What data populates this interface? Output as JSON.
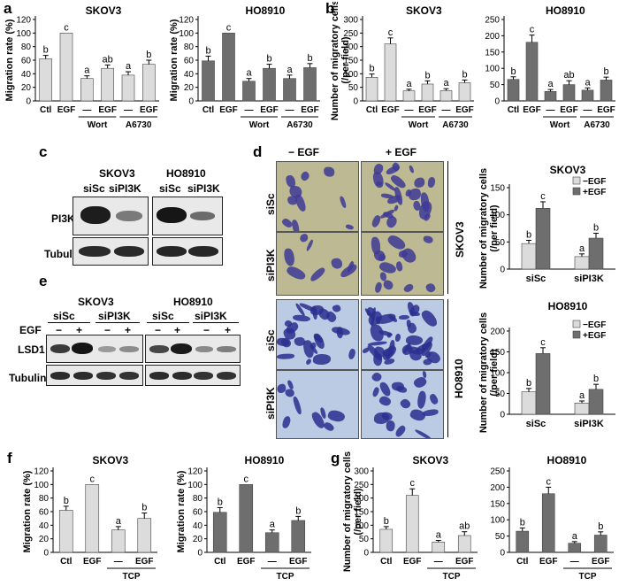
{
  "panels": {
    "a": "a",
    "b": "b",
    "c": "c",
    "d": "d",
    "e": "e",
    "f": "f",
    "g": "g"
  },
  "colors": {
    "light_bar": "#dcdcdc",
    "dark_bar": "#6e6e6e",
    "micro_sk": "#bdb993",
    "micro_ho": "#bccbe4",
    "stain": "#3e3a95"
  },
  "chart_data": [
    {
      "id": "a1",
      "type": "bar",
      "title": "SKOV3",
      "ylabel": "Migration rate (%)",
      "ylim": [
        0,
        120
      ],
      "yticks": [
        0,
        20,
        40,
        60,
        80,
        100,
        120
      ],
      "categories": [
        "Ctl",
        "EGF",
        "—",
        "EGF",
        "—",
        "EGF"
      ],
      "values": [
        62,
        100,
        33,
        48,
        38,
        54
      ],
      "errors": [
        5,
        0,
        4,
        5,
        5,
        6
      ],
      "letters": [
        "b",
        "c",
        "a",
        "ab",
        "a",
        "b"
      ],
      "groups": [
        {
          "label": "Wort",
          "from": 2,
          "to": 3
        },
        {
          "label": "A6730",
          "from": 4,
          "to": 5
        }
      ],
      "bar": "light"
    },
    {
      "id": "a2",
      "type": "bar",
      "title": "HO8910",
      "ylabel": "Migration rate (%)",
      "ylim": [
        0,
        120
      ],
      "yticks": [
        0,
        20,
        40,
        60,
        80,
        100,
        120
      ],
      "categories": [
        "Ctl",
        "EGF",
        "—",
        "EGF",
        "—",
        "EGF"
      ],
      "values": [
        59,
        100,
        29,
        48,
        33,
        49
      ],
      "errors": [
        7,
        0,
        4,
        6,
        5,
        6
      ],
      "letters": [
        "b",
        "c",
        "a",
        "b",
        "a",
        "b"
      ],
      "groups": [
        {
          "label": "Wort",
          "from": 2,
          "to": 3
        },
        {
          "label": "A6730",
          "from": 4,
          "to": 5
        }
      ],
      "bar": "dark"
    },
    {
      "id": "b1",
      "type": "bar",
      "title": "SKOV3",
      "ylabel": "Number of migratory cells (/per field)",
      "ylim": [
        0,
        300
      ],
      "yticks": [
        0,
        50,
        100,
        150,
        200,
        250,
        300
      ],
      "categories": [
        "Ctl",
        "EGF",
        "—",
        "EGF",
        "—",
        "EGF"
      ],
      "values": [
        87,
        210,
        37,
        62,
        38,
        67
      ],
      "errors": [
        12,
        22,
        6,
        12,
        7,
        10
      ],
      "letters": [
        "b",
        "c",
        "a",
        "b",
        "a",
        "b"
      ],
      "groups": [
        {
          "label": "Wort",
          "from": 2,
          "to": 3
        },
        {
          "label": "A6730",
          "from": 4,
          "to": 5
        }
      ],
      "bar": "light"
    },
    {
      "id": "b2",
      "type": "bar",
      "title": "HO8910",
      "ylabel": "",
      "ylim": [
        0,
        250
      ],
      "yticks": [
        0,
        50,
        100,
        150,
        200,
        250
      ],
      "categories": [
        "Ctl",
        "EGF",
        "—",
        "EGF",
        "—",
        "EGF"
      ],
      "values": [
        66,
        180,
        29,
        50,
        33,
        64
      ],
      "errors": [
        8,
        22,
        6,
        12,
        7,
        9
      ],
      "letters": [
        "b",
        "c",
        "a",
        "ab",
        "a",
        "b"
      ],
      "groups": [
        {
          "label": "Wort",
          "from": 2,
          "to": 3
        },
        {
          "label": "A6730",
          "from": 4,
          "to": 5
        }
      ],
      "bar": "dark"
    },
    {
      "id": "d1",
      "type": "bar",
      "title": "SKOV3",
      "ylabel": "Number of migratory cells (/per field)",
      "ylim": [
        0,
        150
      ],
      "yticks": [
        0,
        50,
        100,
        150
      ],
      "categories": [
        "siSc",
        "siPI3K"
      ],
      "series": [
        {
          "name": "−EGF",
          "values": [
            47,
            23
          ],
          "errors": [
            6,
            5
          ],
          "letters": [
            "b",
            "a"
          ]
        },
        {
          "name": "+EGF",
          "values": [
            112,
            57
          ],
          "errors": [
            12,
            9
          ],
          "letters": [
            "c",
            "b"
          ]
        }
      ],
      "legend": "top-right"
    },
    {
      "id": "d2",
      "type": "bar",
      "title": "HO8910",
      "ylabel": "Number of migratory cells (/per field)",
      "ylim": [
        0,
        200
      ],
      "yticks": [
        0,
        50,
        100,
        150,
        200
      ],
      "categories": [
        "siSc",
        "siPI3K"
      ],
      "series": [
        {
          "name": "−EGF",
          "values": [
            54,
            27
          ],
          "errors": [
            8,
            5
          ],
          "letters": [
            "b",
            "a"
          ]
        },
        {
          "name": "+EGF",
          "values": [
            146,
            60
          ],
          "errors": [
            14,
            12
          ],
          "letters": [
            "c",
            "b"
          ]
        }
      ],
      "legend": "top-right"
    },
    {
      "id": "f1",
      "type": "bar",
      "title": "SKOV3",
      "ylabel": "Migration rate (%)",
      "ylim": [
        0,
        120
      ],
      "yticks": [
        0,
        20,
        40,
        60,
        80,
        100,
        120
      ],
      "categories": [
        "Ctl",
        "EGF",
        "—",
        "EGF"
      ],
      "values": [
        62,
        100,
        33,
        50
      ],
      "errors": [
        6,
        0,
        5,
        8
      ],
      "letters": [
        "b",
        "c",
        "a",
        "b"
      ],
      "groups": [
        {
          "label": "TCP",
          "from": 2,
          "to": 3
        }
      ],
      "bar": "light"
    },
    {
      "id": "f2",
      "type": "bar",
      "title": "HO8910",
      "ylabel": "Migration rate (%)",
      "ylim": [
        0,
        120
      ],
      "yticks": [
        0,
        20,
        40,
        60,
        80,
        100,
        120
      ],
      "categories": [
        "Ctl",
        "EGF",
        "—",
        "EGF"
      ],
      "values": [
        59,
        100,
        29,
        47
      ],
      "errors": [
        7,
        0,
        4,
        6
      ],
      "letters": [
        "b",
        "c",
        "a",
        "b"
      ],
      "groups": [
        {
          "label": "TCP",
          "from": 2,
          "to": 3
        }
      ],
      "bar": "dark"
    },
    {
      "id": "g1",
      "type": "bar",
      "title": "SKOV3",
      "ylabel": "Number of migratory cells (/per field)",
      "ylim": [
        0,
        300
      ],
      "yticks": [
        0,
        50,
        100,
        150,
        200,
        250,
        300
      ],
      "categories": [
        "Ctl",
        "EGF",
        "—",
        "EGF"
      ],
      "values": [
        85,
        210,
        38,
        62
      ],
      "errors": [
        10,
        24,
        6,
        14
      ],
      "letters": [
        "b",
        "c",
        "a",
        "ab"
      ],
      "groups": [
        {
          "label": "TCP",
          "from": 2,
          "to": 3
        }
      ],
      "bar": "light"
    },
    {
      "id": "g2",
      "type": "bar",
      "title": "HO8910",
      "ylabel": "",
      "ylim": [
        0,
        250
      ],
      "yticks": [
        0,
        50,
        100,
        150,
        200,
        250
      ],
      "categories": [
        "Ctl",
        "EGF",
        "—",
        "EGF"
      ],
      "values": [
        65,
        180,
        28,
        53
      ],
      "errors": [
        10,
        20,
        5,
        10
      ],
      "letters": [
        "b",
        "c",
        "a",
        "b"
      ],
      "groups": [
        {
          "label": "TCP",
          "from": 2,
          "to": 3
        }
      ],
      "bar": "dark"
    }
  ],
  "blot_c": {
    "skov3": "SKOV3",
    "ho8910": "HO8910",
    "sisc": "siSc",
    "sipi3k": "siPI3K",
    "row1": "PI3K",
    "row2": "Tubulin"
  },
  "blot_e": {
    "skov3": "SKOV3",
    "ho8910": "HO8910",
    "sisc": "siSc",
    "sipi3k": "siPI3K",
    "egf": "EGF",
    "minus": "−",
    "plus": "+",
    "row1": "LSD1",
    "row2": "Tubulin"
  },
  "micro_d": {
    "minus_egf": "− EGF",
    "plus_egf": "+ EGF",
    "sisc": "siSc",
    "sipi3k": "siPI3K",
    "skov3": "SKOV3",
    "ho8910": "HO8910"
  }
}
